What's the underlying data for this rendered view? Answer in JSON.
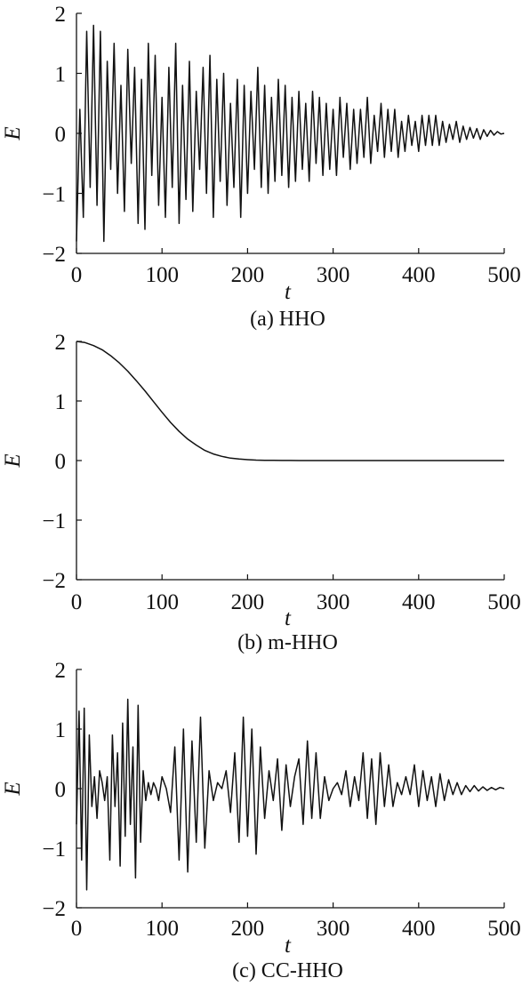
{
  "chart_data": [
    {
      "type": "line",
      "caption": "(a) HHO",
      "xlabel": "t",
      "ylabel": "E",
      "xlim": [
        0,
        500
      ],
      "ylim": [
        -2,
        2
      ],
      "xticks": [
        "0",
        "100",
        "200",
        "300",
        "400",
        "500"
      ],
      "yticks": [
        "2",
        "1",
        "0",
        "−1",
        "−2"
      ],
      "xtick_values": [
        0,
        100,
        200,
        300,
        400,
        500
      ],
      "ytick_values": [
        2,
        1,
        0,
        -1,
        -2
      ],
      "series": [
        {
          "x": [
            0,
            4,
            8,
            12,
            16,
            20,
            24,
            28,
            32,
            36,
            40,
            44,
            48,
            52,
            56,
            60,
            64,
            68,
            72,
            76,
            80,
            84,
            88,
            92,
            96,
            100,
            104,
            108,
            112,
            116,
            120,
            124,
            128,
            132,
            136,
            140,
            144,
            148,
            152,
            156,
            160,
            164,
            168,
            172,
            176,
            180,
            184,
            188,
            192,
            196,
            200,
            204,
            208,
            212,
            216,
            220,
            224,
            228,
            232,
            236,
            240,
            244,
            248,
            252,
            256,
            260,
            264,
            268,
            272,
            276,
            280,
            284,
            288,
            292,
            296,
            300,
            304,
            308,
            312,
            316,
            320,
            324,
            328,
            332,
            336,
            340,
            344,
            348,
            352,
            356,
            360,
            364,
            368,
            372,
            376,
            380,
            384,
            388,
            392,
            396,
            400,
            404,
            408,
            412,
            416,
            420,
            424,
            428,
            432,
            436,
            440,
            444,
            448,
            452,
            456,
            460,
            464,
            468,
            472,
            476,
            480,
            484,
            488,
            492,
            496,
            500
          ],
          "y": [
            -1.8,
            0.4,
            -1.4,
            1.7,
            -0.9,
            1.8,
            -1.2,
            1.7,
            -1.8,
            1.2,
            -0.6,
            1.5,
            -1.0,
            0.8,
            -1.3,
            1.4,
            -0.5,
            1.1,
            -1.5,
            0.9,
            -1.6,
            1.5,
            -0.7,
            1.3,
            -1.2,
            0.6,
            -1.4,
            1.1,
            -0.9,
            1.5,
            -1.5,
            0.8,
            -1.1,
            1.2,
            -1.3,
            0.7,
            -0.6,
            1.1,
            -1.0,
            1.3,
            -1.4,
            0.9,
            -0.8,
            1.0,
            -1.2,
            0.5,
            -0.9,
            0.9,
            -1.4,
            0.8,
            -1.0,
            0.7,
            -0.6,
            1.1,
            -0.9,
            0.8,
            -1.0,
            0.6,
            -0.8,
            0.9,
            -0.7,
            0.8,
            -0.9,
            0.6,
            -0.8,
            0.7,
            -0.6,
            0.5,
            -0.8,
            0.7,
            -0.5,
            0.6,
            -0.7,
            0.5,
            -0.6,
            0.4,
            -0.7,
            0.6,
            -0.4,
            0.5,
            -0.6,
            0.4,
            -0.5,
            0.4,
            -0.4,
            0.6,
            -0.5,
            0.3,
            -0.3,
            0.5,
            -0.4,
            0.4,
            -0.3,
            0.4,
            -0.4,
            0.2,
            -0.3,
            0.3,
            -0.2,
            0.2,
            -0.3,
            0.3,
            -0.2,
            0.3,
            -0.2,
            0.3,
            -0.2,
            0.2,
            -0.15,
            0.15,
            -0.1,
            0.2,
            -0.15,
            0.12,
            -0.1,
            0.1,
            -0.08,
            0.08,
            -0.1,
            0.06,
            -0.05,
            0.05,
            -0.03,
            0.03,
            -0.01,
            0.0
          ]
        }
      ]
    },
    {
      "type": "line",
      "caption": "(b) m-HHO",
      "xlabel": "t",
      "ylabel": "E",
      "xlim": [
        0,
        500
      ],
      "ylim": [
        -2,
        2
      ],
      "xticks": [
        "0",
        "100",
        "200",
        "300",
        "400",
        "500"
      ],
      "yticks": [
        "2",
        "1",
        "0",
        "−1",
        "−2"
      ],
      "xtick_values": [
        0,
        100,
        200,
        300,
        400,
        500
      ],
      "ytick_values": [
        2,
        1,
        0,
        -1,
        -2
      ],
      "series": [
        {
          "x": [
            0,
            10,
            20,
            30,
            40,
            50,
            60,
            70,
            80,
            90,
            100,
            110,
            120,
            130,
            140,
            150,
            160,
            170,
            180,
            190,
            200,
            210,
            220,
            230,
            240,
            250,
            260,
            280,
            300,
            350,
            400,
            450,
            500
          ],
          "y": [
            2.0,
            1.98,
            1.93,
            1.86,
            1.76,
            1.64,
            1.5,
            1.34,
            1.17,
            0.99,
            0.81,
            0.64,
            0.49,
            0.36,
            0.26,
            0.17,
            0.11,
            0.07,
            0.04,
            0.025,
            0.015,
            0.008,
            0.005,
            0.003,
            0.002,
            0.001,
            0.0,
            0.0,
            0.0,
            0.0,
            0.0,
            0.0,
            0.0
          ]
        }
      ]
    },
    {
      "type": "line",
      "caption": "(c) CC-HHO",
      "xlabel": "t",
      "ylabel": "E",
      "xlim": [
        0,
        500
      ],
      "ylim": [
        -2,
        2
      ],
      "xticks": [
        "0",
        "100",
        "200",
        "300",
        "400",
        "500"
      ],
      "yticks": [
        "2",
        "1",
        "0",
        "−1",
        "−2"
      ],
      "xtick_values": [
        0,
        100,
        200,
        300,
        400,
        500
      ],
      "ytick_values": [
        2,
        1,
        0,
        -1,
        -2
      ],
      "series": [
        {
          "x": [
            0,
            3,
            6,
            9,
            12,
            15,
            18,
            21,
            24,
            27,
            30,
            33,
            36,
            39,
            42,
            45,
            48,
            51,
            54,
            57,
            60,
            63,
            66,
            69,
            72,
            75,
            78,
            81,
            84,
            87,
            90,
            93,
            96,
            100,
            105,
            110,
            115,
            120,
            125,
            130,
            135,
            140,
            145,
            150,
            155,
            160,
            165,
            170,
            175,
            180,
            185,
            190,
            195,
            200,
            205,
            210,
            215,
            220,
            225,
            230,
            235,
            240,
            245,
            250,
            255,
            260,
            265,
            270,
            275,
            280,
            285,
            290,
            295,
            300,
            305,
            310,
            315,
            320,
            325,
            330,
            335,
            340,
            345,
            350,
            355,
            360,
            365,
            370,
            375,
            380,
            385,
            390,
            395,
            400,
            405,
            410,
            415,
            420,
            425,
            430,
            435,
            440,
            445,
            450,
            455,
            460,
            465,
            470,
            475,
            480,
            485,
            490,
            495,
            500
          ],
          "y": [
            -0.6,
            1.3,
            -1.2,
            1.35,
            -1.7,
            0.9,
            -0.3,
            0.2,
            -0.5,
            0.3,
            0.1,
            -0.2,
            0.2,
            -1.2,
            0.9,
            -0.3,
            0.6,
            -1.3,
            1.1,
            -0.8,
            1.5,
            -0.6,
            0.7,
            -1.5,
            1.4,
            -0.9,
            0.3,
            -0.2,
            0.1,
            -0.1,
            0.1,
            0.0,
            -0.2,
            0.2,
            0.0,
            -0.4,
            0.7,
            -1.2,
            1.0,
            -1.4,
            0.8,
            -0.9,
            1.2,
            -1.0,
            0.3,
            -0.2,
            0.1,
            0.0,
            0.3,
            -0.4,
            0.6,
            -0.9,
            1.2,
            -0.8,
            1.0,
            -1.1,
            0.7,
            -0.5,
            0.3,
            -0.2,
            0.5,
            -0.7,
            0.4,
            -0.3,
            0.2,
            0.5,
            -0.6,
            0.8,
            -0.5,
            0.6,
            -0.5,
            0.2,
            -0.2,
            0.0,
            0.1,
            -0.1,
            0.3,
            -0.3,
            0.2,
            -0.2,
            0.6,
            -0.5,
            0.5,
            -0.6,
            0.6,
            -0.3,
            0.4,
            -0.3,
            0.1,
            -0.1,
            0.2,
            -0.1,
            0.4,
            -0.3,
            0.3,
            -0.2,
            0.2,
            -0.3,
            0.25,
            -0.2,
            0.15,
            -0.1,
            0.1,
            -0.1,
            0.05,
            -0.05,
            0.05,
            -0.04,
            0.03,
            -0.03,
            0.02,
            -0.02,
            0.02,
            0.0
          ]
        }
      ]
    }
  ]
}
